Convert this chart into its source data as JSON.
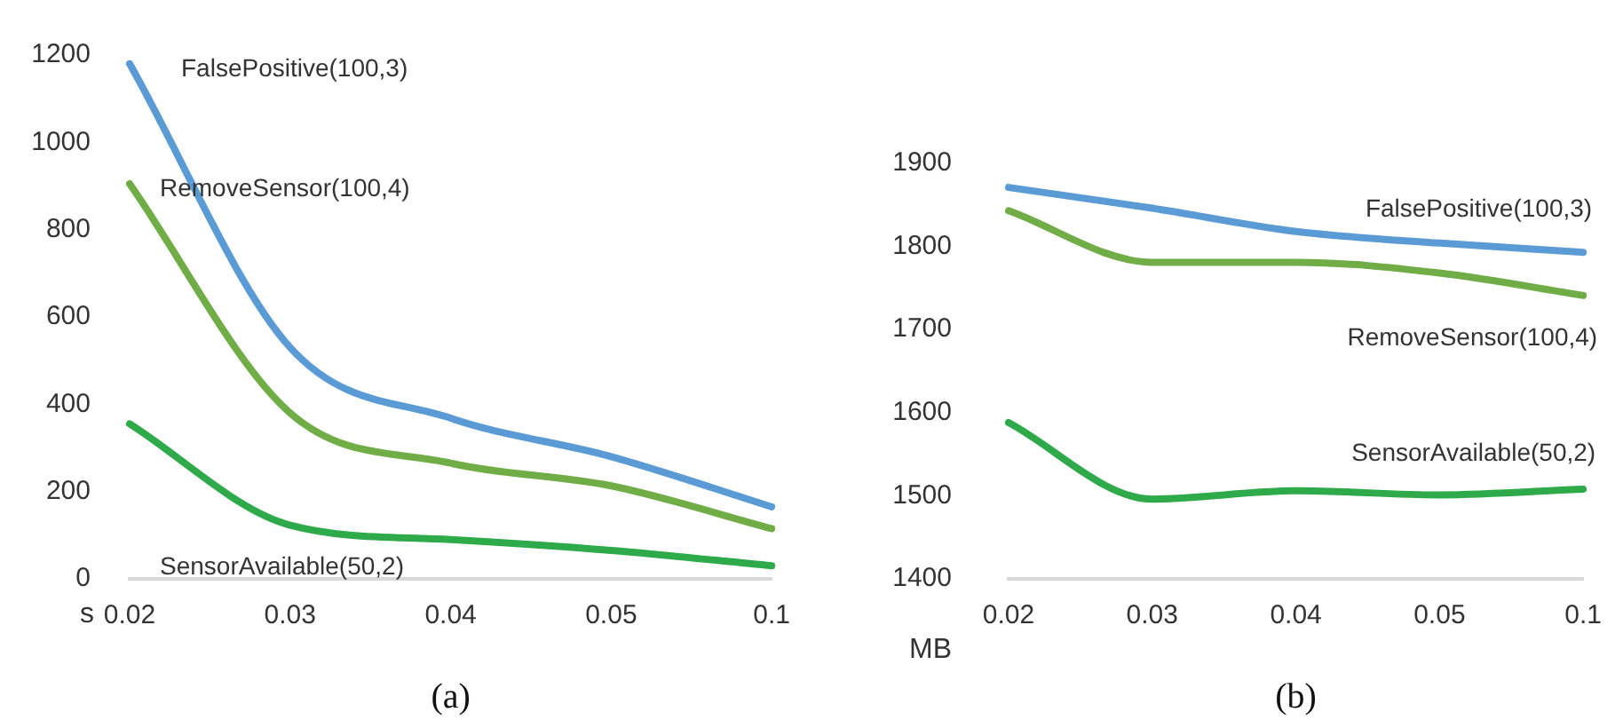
{
  "chart_data": [
    {
      "type": "line",
      "xlabel": "(a)",
      "ylabel": "s",
      "categories": [
        "0.02",
        "0.03",
        "0.04",
        "0.05",
        "0.1"
      ],
      "ylim": [
        0,
        1200
      ],
      "yticks": [
        0,
        200,
        400,
        600,
        800,
        1000,
        1200
      ],
      "grid": false,
      "legend": false,
      "marker": "none",
      "line_style": "solid",
      "series": [
        {
          "name": "FalsePositive(100,3)",
          "color": "#5b9bd5",
          "values": [
            1180,
            530,
            368,
            280,
            165
          ]
        },
        {
          "name": "RemoveSensor(100,4)",
          "color": "#70ad47",
          "values": [
            905,
            380,
            265,
            213,
            115
          ]
        },
        {
          "name": "SensorAvailable(50,2)",
          "color": "#2eaa4a",
          "values": [
            355,
            123,
            90,
            65,
            30
          ]
        }
      ]
    },
    {
      "type": "line",
      "xlabel": "(b)",
      "ylabel": "MB",
      "categories": [
        "0.02",
        "0.03",
        "0.04",
        "0.05",
        "0.1"
      ],
      "ylim": [
        1400,
        1900
      ],
      "yticks": [
        1400,
        1500,
        1600,
        1700,
        1800,
        1900
      ],
      "grid": false,
      "legend": false,
      "marker": "none",
      "line_style": "solid",
      "series": [
        {
          "name": "FalsePositive(100,3)",
          "color": "#5b9bd5",
          "values": [
            1871,
            1846,
            1818,
            1804,
            1793
          ]
        },
        {
          "name": "RemoveSensor(100,4)",
          "color": "#70ad47",
          "values": [
            1843,
            1781,
            1781,
            1768,
            1741
          ]
        },
        {
          "name": "SensorAvailable(50,2)",
          "color": "#2eaa4a",
          "values": [
            1588,
            1496,
            1506,
            1501,
            1508
          ]
        }
      ]
    }
  ]
}
